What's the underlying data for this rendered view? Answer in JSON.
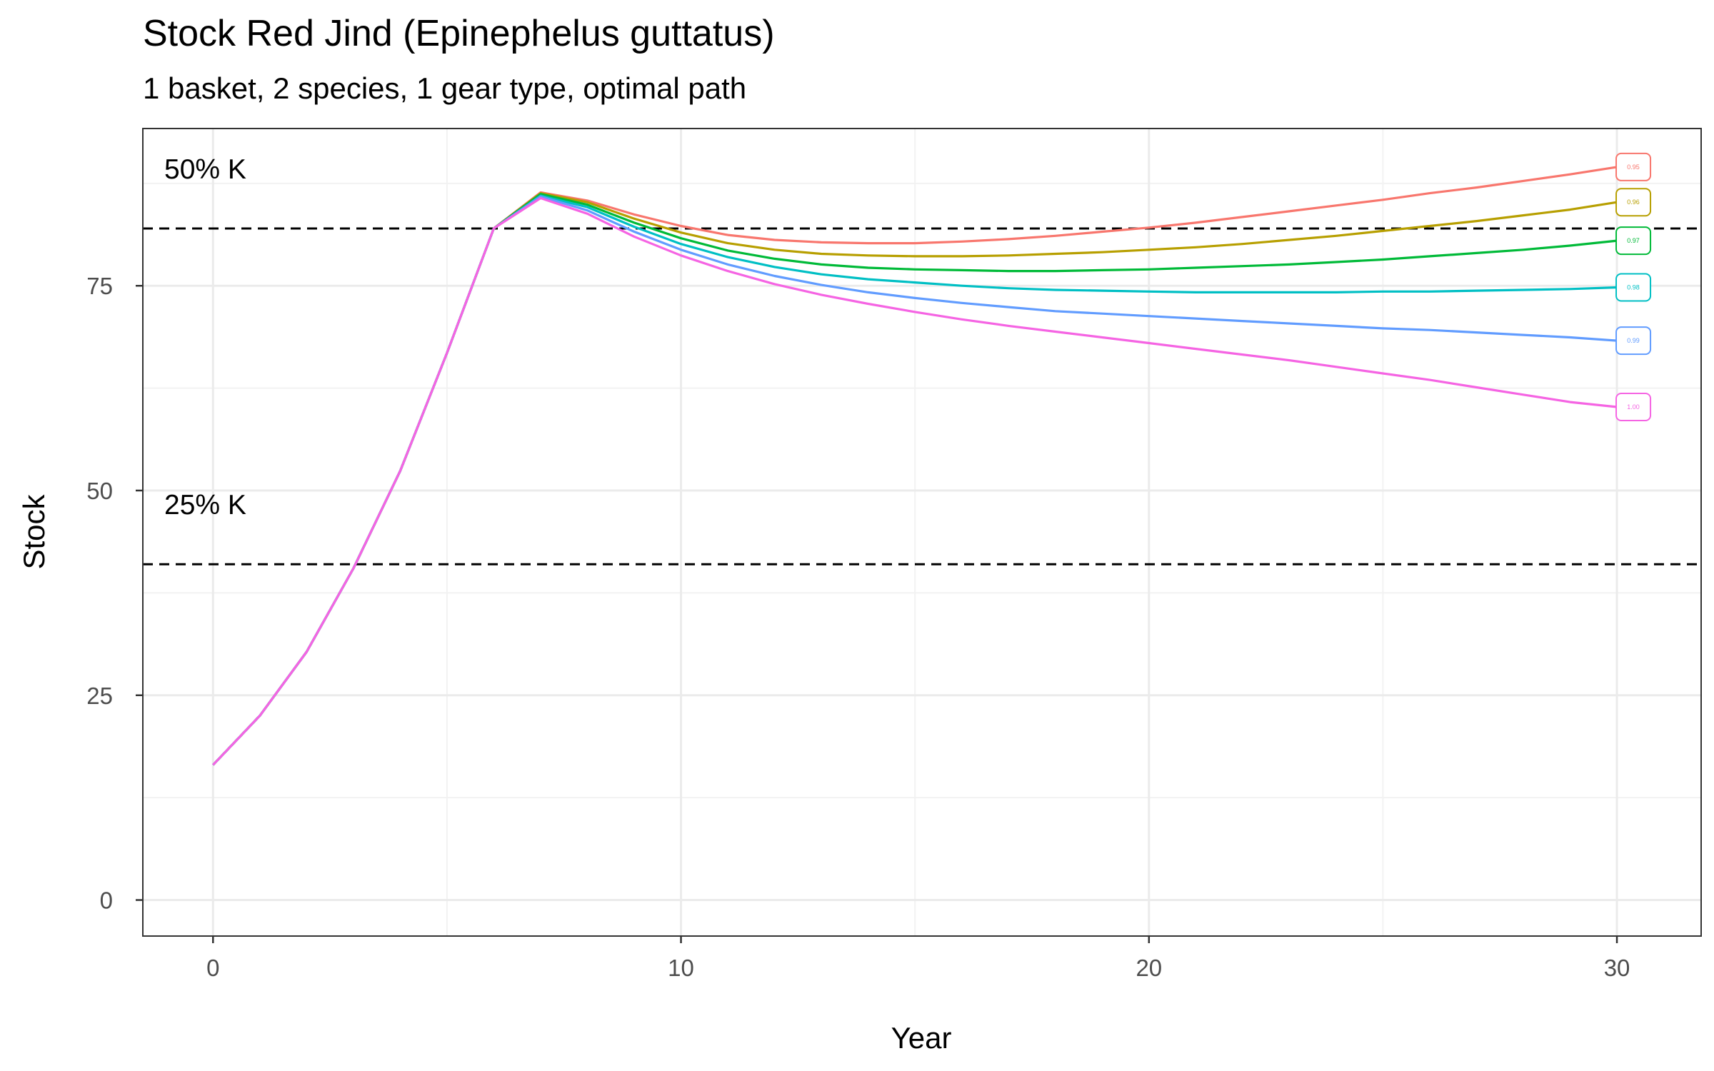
{
  "chart_data": {
    "type": "line",
    "title": "Stock Red Jind (Epinephelus guttatus)",
    "subtitle": "1 basket, 2 species, 1 gear type, optimal path",
    "xlabel": "Year",
    "ylabel": "Stock",
    "xlim": [
      -1.5,
      31.8
    ],
    "ylim": [
      -4.4,
      94.2
    ],
    "xticks": [
      0,
      10,
      20,
      30
    ],
    "xtick_labels": [
      "0",
      "10",
      "20",
      "30"
    ],
    "yticks": [
      0,
      25,
      50,
      75
    ],
    "ytick_labels": [
      "0",
      "25",
      "50",
      "75"
    ],
    "grid": true,
    "legend": "none",
    "reference_lines": [
      {
        "label": "50% K",
        "y": 82
      },
      {
        "label": "25% K",
        "y": 41
      }
    ],
    "x": [
      0,
      1,
      2,
      3,
      4,
      5,
      6,
      7,
      8,
      9,
      10,
      11,
      12,
      13,
      14,
      15,
      16,
      17,
      18,
      19,
      20,
      21,
      22,
      23,
      24,
      25,
      26,
      27,
      28,
      29,
      30
    ],
    "series": [
      {
        "name": "0.95",
        "color": "#F8766D",
        "values": [
          16.5,
          22.5,
          30.3,
          40.5,
          52.4,
          66.8,
          82.0,
          86.4,
          85.4,
          83.7,
          82.3,
          81.2,
          80.6,
          80.3,
          80.2,
          80.2,
          80.4,
          80.7,
          81.1,
          81.6,
          82.1,
          82.7,
          83.4,
          84.1,
          84.8,
          85.5,
          86.3,
          87.0,
          87.8,
          88.6,
          89.5
        ]
      },
      {
        "name": "0.96",
        "color": "#B79F00",
        "values": [
          16.5,
          22.5,
          30.3,
          40.5,
          52.4,
          66.8,
          82.0,
          86.3,
          85.2,
          83.2,
          81.5,
          80.2,
          79.4,
          78.9,
          78.7,
          78.6,
          78.6,
          78.7,
          78.9,
          79.1,
          79.4,
          79.7,
          80.1,
          80.6,
          81.1,
          81.7,
          82.3,
          82.9,
          83.6,
          84.3,
          85.2
        ]
      },
      {
        "name": "0.97",
        "color": "#00BA38",
        "values": [
          16.5,
          22.5,
          30.3,
          40.5,
          52.4,
          66.8,
          82.0,
          86.2,
          84.9,
          82.7,
          80.8,
          79.3,
          78.3,
          77.6,
          77.2,
          77.0,
          76.9,
          76.8,
          76.8,
          76.9,
          77.0,
          77.2,
          77.4,
          77.6,
          77.9,
          78.2,
          78.6,
          79.0,
          79.4,
          79.9,
          80.5
        ]
      },
      {
        "name": "0.98",
        "color": "#00BFC4",
        "values": [
          16.5,
          22.5,
          30.3,
          40.5,
          52.4,
          66.8,
          82.0,
          86.0,
          84.6,
          82.2,
          80.1,
          78.5,
          77.3,
          76.4,
          75.8,
          75.4,
          75.0,
          74.7,
          74.5,
          74.4,
          74.3,
          74.2,
          74.2,
          74.2,
          74.2,
          74.3,
          74.3,
          74.4,
          74.5,
          74.6,
          74.8
        ]
      },
      {
        "name": "0.99",
        "color": "#619CFF",
        "values": [
          16.5,
          22.5,
          30.3,
          40.5,
          52.4,
          66.8,
          82.0,
          85.9,
          84.2,
          81.6,
          79.4,
          77.6,
          76.2,
          75.1,
          74.2,
          73.5,
          72.9,
          72.4,
          71.9,
          71.6,
          71.3,
          71.0,
          70.7,
          70.4,
          70.1,
          69.8,
          69.6,
          69.3,
          69.0,
          68.7,
          68.3
        ]
      },
      {
        "name": "1.00",
        "color": "#F564E3",
        "values": [
          16.5,
          22.5,
          30.3,
          40.5,
          52.4,
          66.8,
          82.0,
          85.7,
          83.8,
          81.0,
          78.7,
          76.8,
          75.2,
          73.9,
          72.8,
          71.8,
          70.9,
          70.1,
          69.4,
          68.7,
          68.0,
          67.3,
          66.6,
          65.9,
          65.1,
          64.3,
          63.5,
          62.6,
          61.7,
          60.8,
          60.2
        ]
      }
    ]
  }
}
